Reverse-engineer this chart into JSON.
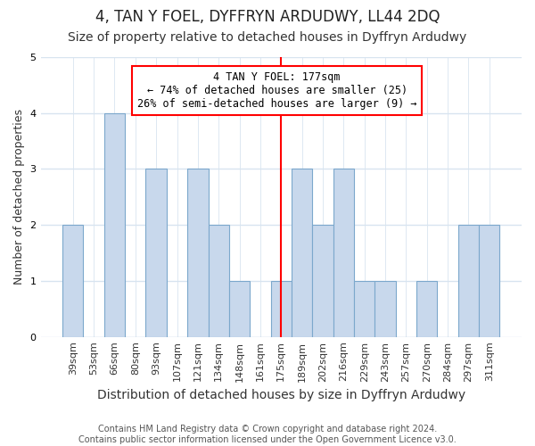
{
  "title": "4, TAN Y FOEL, DYFFRYN ARDUDWY, LL44 2DQ",
  "subtitle": "Size of property relative to detached houses in Dyffryn Ardudwy",
  "xlabel": "Distribution of detached houses by size in Dyffryn Ardudwy",
  "ylabel": "Number of detached properties",
  "categories": [
    "39sqm",
    "53sqm",
    "66sqm",
    "80sqm",
    "93sqm",
    "107sqm",
    "121sqm",
    "134sqm",
    "148sqm",
    "161sqm",
    "175sqm",
    "189sqm",
    "202sqm",
    "216sqm",
    "229sqm",
    "243sqm",
    "257sqm",
    "270sqm",
    "284sqm",
    "297sqm",
    "311sqm"
  ],
  "values": [
    2,
    0,
    4,
    0,
    3,
    0,
    3,
    2,
    1,
    0,
    1,
    3,
    2,
    3,
    1,
    1,
    0,
    1,
    0,
    2,
    2
  ],
  "bar_color": "#c8d8ec",
  "bar_edge_color": "#7ca8cc",
  "vline_x": 10,
  "annotation_text": "4 TAN Y FOEL: 177sqm\n← 74% of detached houses are smaller (25)\n26% of semi-detached houses are larger (9) →",
  "annotation_box_color": "white",
  "annotation_box_edge": "red",
  "vline_color": "red",
  "ylim": [
    0,
    5
  ],
  "yticks": [
    0,
    1,
    2,
    3,
    4,
    5
  ],
  "footer": "Contains HM Land Registry data © Crown copyright and database right 2024.\nContains public sector information licensed under the Open Government Licence v3.0.",
  "title_fontsize": 12,
  "subtitle_fontsize": 10,
  "xlabel_fontsize": 10,
  "ylabel_fontsize": 9,
  "tick_fontsize": 8,
  "footer_fontsize": 7,
  "bg_color": "#ffffff",
  "grid_color": "#d8e4f0"
}
